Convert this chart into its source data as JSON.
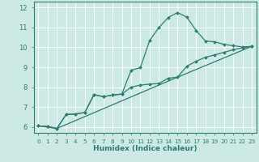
{
  "xlabel": "Humidex (Indice chaleur)",
  "background_color": "#cce9e5",
  "grid_color": "#ffffff",
  "line_color": "#2e7d6e",
  "xlim": [
    -0.5,
    23.5
  ],
  "ylim": [
    5.7,
    12.3
  ],
  "xticks": [
    0,
    1,
    2,
    3,
    4,
    5,
    6,
    7,
    8,
    9,
    10,
    11,
    12,
    13,
    14,
    15,
    16,
    17,
    18,
    19,
    20,
    21,
    22,
    23
  ],
  "yticks": [
    6,
    7,
    8,
    9,
    10,
    11,
    12
  ],
  "x": [
    0,
    1,
    2,
    3,
    4,
    5,
    6,
    7,
    8,
    9,
    10,
    11,
    12,
    13,
    14,
    15,
    16,
    17,
    18,
    19,
    20,
    21,
    22,
    23
  ],
  "line1": [
    6.05,
    6.02,
    5.92,
    6.62,
    6.65,
    6.72,
    7.62,
    7.52,
    7.6,
    7.65,
    8.85,
    8.98,
    10.35,
    11.0,
    11.5,
    11.75,
    11.52,
    10.85,
    10.32,
    10.28,
    10.15,
    10.08,
    10.02,
    10.05
  ],
  "line2": [
    6.05,
    6.02,
    5.92,
    6.62,
    6.65,
    6.72,
    7.62,
    7.52,
    7.6,
    7.65,
    8.0,
    8.1,
    8.15,
    8.18,
    8.45,
    8.5,
    9.05,
    9.3,
    9.5,
    9.62,
    9.75,
    9.88,
    9.98,
    10.05
  ],
  "line3_x": [
    0,
    2,
    15,
    23
  ],
  "line3_y": [
    6.05,
    5.92,
    8.5,
    10.05
  ]
}
